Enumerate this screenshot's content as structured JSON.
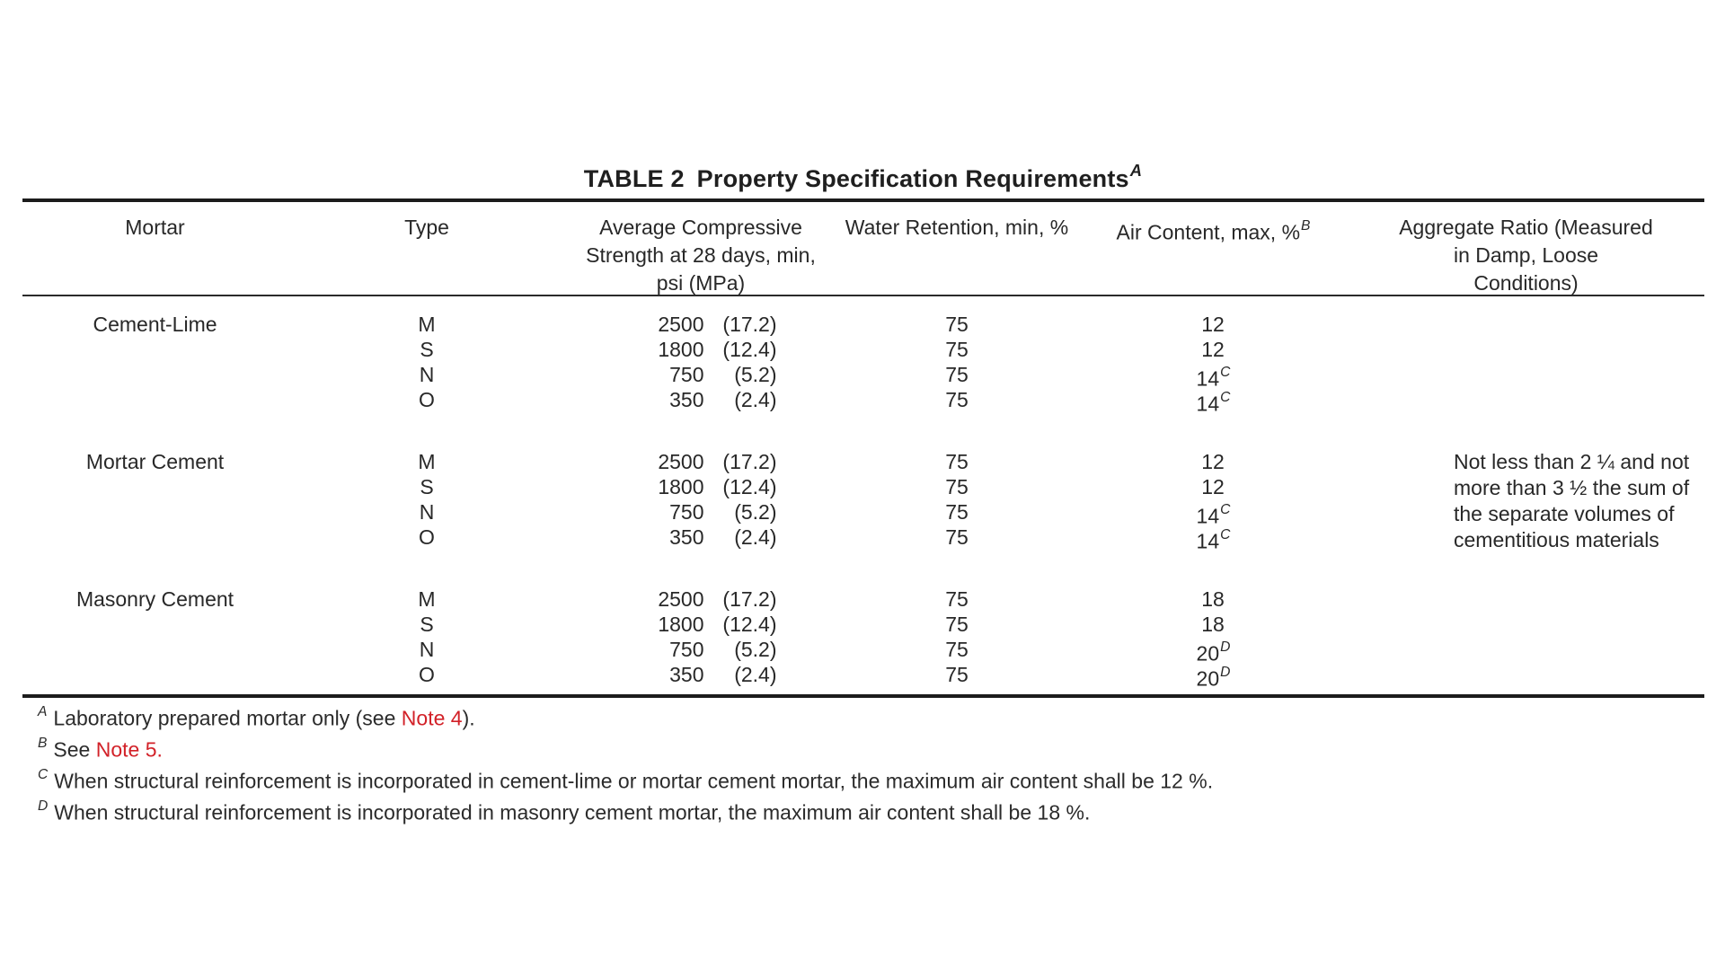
{
  "title": {
    "prefix": "TABLE 2",
    "text": "Property Specification Requirements",
    "superscript": "A"
  },
  "colors": {
    "text": "#282828",
    "rule": "#1c1c1c",
    "note_red": "#d22128"
  },
  "table": {
    "headers": {
      "mortar": "Mortar",
      "type": "Type",
      "strength_lines": [
        "Average Compressive",
        "Strength at 28 days, min,",
        "psi (MPa)"
      ],
      "water": "Water Retention, min, %",
      "air": "Air Content, max, %",
      "air_superscript": "B",
      "aggregate_lines": [
        "Aggregate Ratio (Measured",
        "in Damp, Loose",
        "Conditions)"
      ]
    },
    "sections": [
      {
        "mortar": "Cement-Lime",
        "rows": [
          {
            "type": "M",
            "psi": "2500",
            "mpa": "(17.2)",
            "water": "75",
            "air": "12",
            "air_sup": ""
          },
          {
            "type": "S",
            "psi": "1800",
            "mpa": "(12.4)",
            "water": "75",
            "air": "12",
            "air_sup": ""
          },
          {
            "type": "N",
            "psi": "750",
            "mpa": "(5.2)",
            "water": "75",
            "air": "14",
            "air_sup": "C"
          },
          {
            "type": "O",
            "psi": "350",
            "mpa": "(2.4)",
            "water": "75",
            "air": "14",
            "air_sup": "C"
          }
        ]
      },
      {
        "mortar": "Mortar Cement",
        "aggregate_lines": [
          "Not less than 2 ¼ and not",
          "more than 3 ½ the sum of",
          "the separate volumes of",
          "cementitious materials"
        ],
        "rows": [
          {
            "type": "M",
            "psi": "2500",
            "mpa": "(17.2)",
            "water": "75",
            "air": "12",
            "air_sup": ""
          },
          {
            "type": "S",
            "psi": "1800",
            "mpa": "(12.4)",
            "water": "75",
            "air": "12",
            "air_sup": ""
          },
          {
            "type": "N",
            "psi": "750",
            "mpa": "(5.2)",
            "water": "75",
            "air": "14",
            "air_sup": "C"
          },
          {
            "type": "O",
            "psi": "350",
            "mpa": "(2.4)",
            "water": "75",
            "air": "14",
            "air_sup": "C"
          }
        ]
      },
      {
        "mortar": "Masonry Cement",
        "rows": [
          {
            "type": "M",
            "psi": "2500",
            "mpa": "(17.2)",
            "water": "75",
            "air": "18",
            "air_sup": ""
          },
          {
            "type": "S",
            "psi": "1800",
            "mpa": "(12.4)",
            "water": "75",
            "air": "18",
            "air_sup": ""
          },
          {
            "type": "N",
            "psi": "750",
            "mpa": "(5.2)",
            "water": "75",
            "air": "20",
            "air_sup": "D"
          },
          {
            "type": "O",
            "psi": "350",
            "mpa": "(2.4)",
            "water": "75",
            "air": "20",
            "air_sup": "D"
          }
        ]
      }
    ]
  },
  "footnotes": [
    {
      "marker": "A",
      "parts": [
        {
          "text": "Laboratory prepared mortar only (see "
        },
        {
          "text": "Note 4",
          "red": true,
          "link": true
        },
        {
          "text": ")."
        }
      ]
    },
    {
      "marker": "B",
      "parts": [
        {
          "text": "See "
        },
        {
          "text": "Note 5.",
          "red": true,
          "link": true
        }
      ]
    },
    {
      "marker": "C",
      "parts": [
        {
          "text": "When structural reinforcement is incorporated in cement-lime or mortar cement mortar, the maximum air content shall be 12 %."
        }
      ]
    },
    {
      "marker": "D",
      "parts": [
        {
          "text": "When structural reinforcement is incorporated in masonry cement mortar, the maximum air content shall be 18 %."
        }
      ]
    }
  ]
}
